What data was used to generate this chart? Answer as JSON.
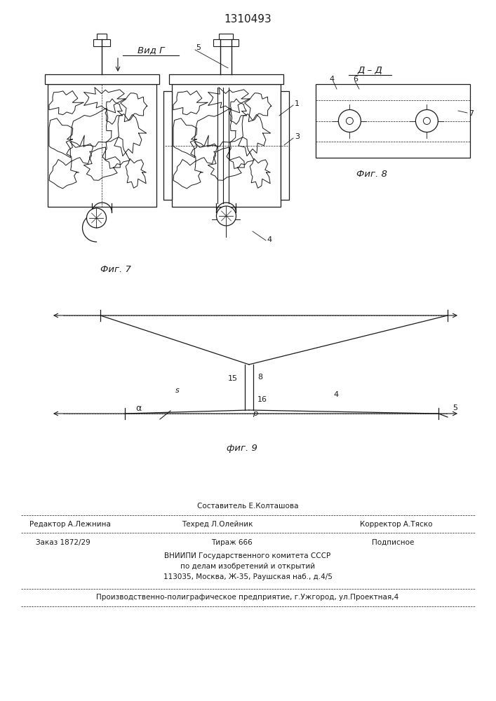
{
  "title": "1310493",
  "fig7_caption": "Фиг. 7",
  "fig8_caption": "Фиг. 8",
  "fig9_caption": "фиг. 9",
  "vid_g_label": "Вид Г",
  "dd_label": "Д – Д",
  "footer1": "Составитель Е.Колташова",
  "footer2a": "Редактор А.Лежнина",
  "footer2b": "Техред Л.Олейник",
  "footer2c": "Корректор А.Тяско",
  "footer3a": "Заказ 1872/29",
  "footer3b": "Тираж 666",
  "footer3c": "Подписное",
  "footer4a": "ВНИИПИ Государственного комитета СССР",
  "footer4b": "по делам изобретений и открытий",
  "footer4c": "113035, Москва, Ж-35, Раушская наб., д.4/5",
  "footer5": "Производственно-полиграфическое предприятие, г.Ужгород, ул.Проектная,4"
}
